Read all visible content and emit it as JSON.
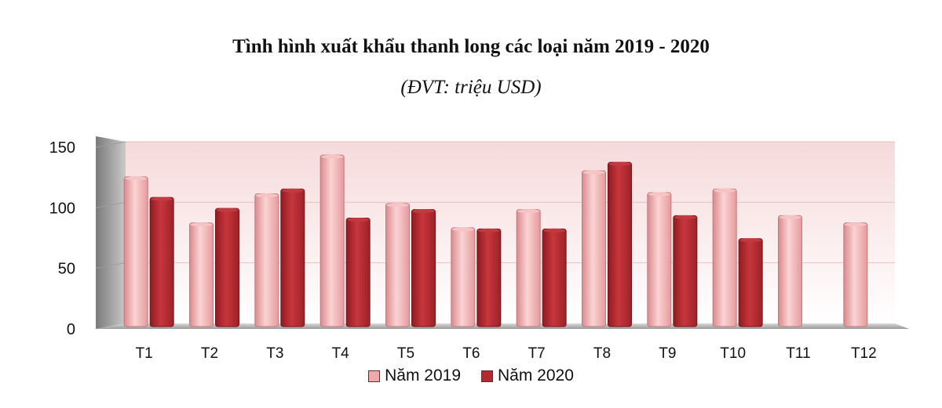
{
  "chart_data": {
    "type": "bar",
    "title": "Tình hình xuất khẩu thanh long các loại năm 2019 - 2020",
    "subtitle": "(ĐVT: triệu USD)",
    "categories": [
      "T1",
      "T2",
      "T3",
      "T4",
      "T5",
      "T6",
      "T7",
      "T8",
      "T9",
      "T10",
      "T11",
      "T12"
    ],
    "series": [
      {
        "name": "Năm 2019",
        "color": "#f0a8aa",
        "values": [
          121,
          83,
          107,
          139,
          99,
          79,
          94,
          126,
          108,
          111,
          89,
          83
        ]
      },
      {
        "name": "Năm 2020",
        "color": "#b52a30",
        "values": [
          104,
          95,
          111,
          87,
          94,
          78,
          78,
          133,
          89,
          70,
          null,
          null
        ]
      }
    ],
    "ylim": [
      0,
      150
    ],
    "yticks": [
      0,
      50,
      100,
      150
    ],
    "xlabel": "",
    "ylabel": "",
    "grid": true,
    "legend_position": "bottom"
  }
}
